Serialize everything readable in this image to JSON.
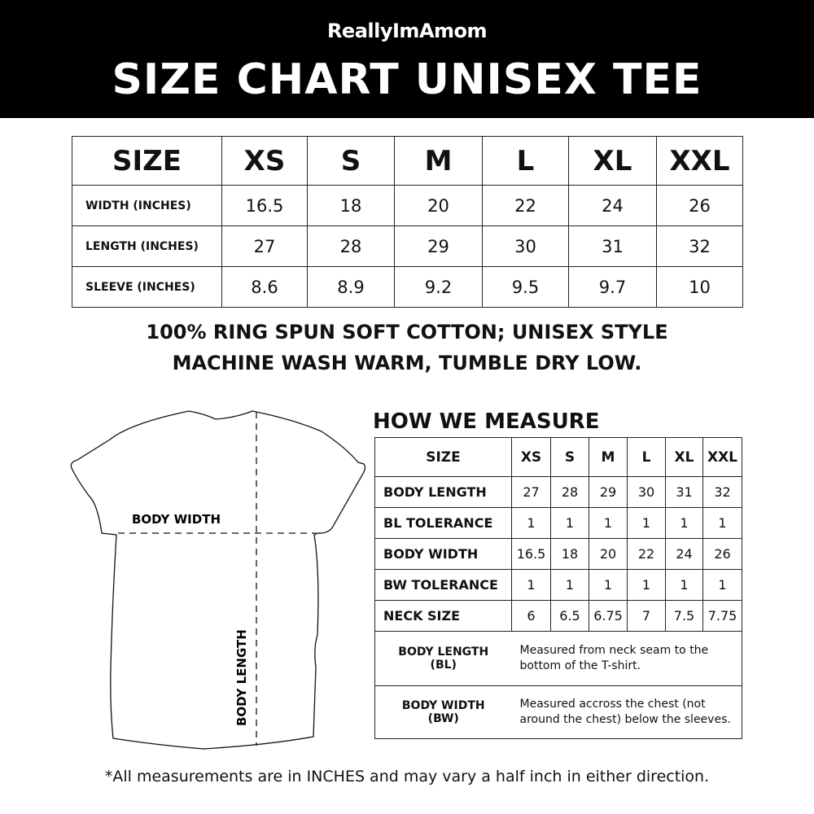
{
  "header": {
    "logo": "ReallyImAmom",
    "title": "SIZE CHART UNISEX TEE"
  },
  "size_table": {
    "headers": [
      "SIZE",
      "XS",
      "S",
      "M",
      "L",
      "XL",
      "XXL"
    ],
    "rows": [
      {
        "label": "WIDTH (INCHES)",
        "values": [
          "16.5",
          "18",
          "20",
          "22",
          "24",
          "26"
        ]
      },
      {
        "label": "LENGTH (INCHES)",
        "values": [
          "27",
          "28",
          "29",
          "30",
          "31",
          "32"
        ]
      },
      {
        "label": "SLEEVE (INCHES)",
        "values": [
          "8.6",
          "8.9",
          "9.2",
          "9.5",
          "9.7",
          "10"
        ]
      }
    ]
  },
  "notes": {
    "line1": "100% RING SPUN SOFT COTTON; UNISEX STYLE",
    "line2": "MACHINE WASH WARM, TUMBLE DRY LOW."
  },
  "diagram": {
    "body_width": "BODY WIDTH",
    "body_length": "BODY LENGTH"
  },
  "measure": {
    "title": "HOW WE MEASURE",
    "headers": [
      "SIZE",
      "XS",
      "S",
      "M",
      "L",
      "XL",
      "XXL"
    ],
    "rows": [
      {
        "label": "BODY LENGTH",
        "values": [
          "27",
          "28",
          "29",
          "30",
          "31",
          "32"
        ]
      },
      {
        "label": "BL TOLERANCE",
        "values": [
          "1",
          "1",
          "1",
          "1",
          "1",
          "1"
        ]
      },
      {
        "label": "BODY WIDTH",
        "values": [
          "16.5",
          "18",
          "20",
          "22",
          "24",
          "26"
        ]
      },
      {
        "label": "BW TOLERANCE",
        "values": [
          "1",
          "1",
          "1",
          "1",
          "1",
          "1"
        ]
      },
      {
        "label": "NECK SIZE",
        "values": [
          "6",
          "6.5",
          "6.75",
          "7",
          "7.5",
          "7.75"
        ]
      }
    ],
    "definitions": [
      {
        "term": "BODY LENGTH",
        "abbr": "(BL)",
        "text": "Measured from neck seam to the bottom of the T-shirt."
      },
      {
        "term": "BODY WIDTH",
        "abbr": "(BW)",
        "text": "Measured accross the chest (not around the chest) below the sleeves."
      }
    ]
  },
  "footer": "*All measurements are in INCHES and may vary a half inch in either direction."
}
